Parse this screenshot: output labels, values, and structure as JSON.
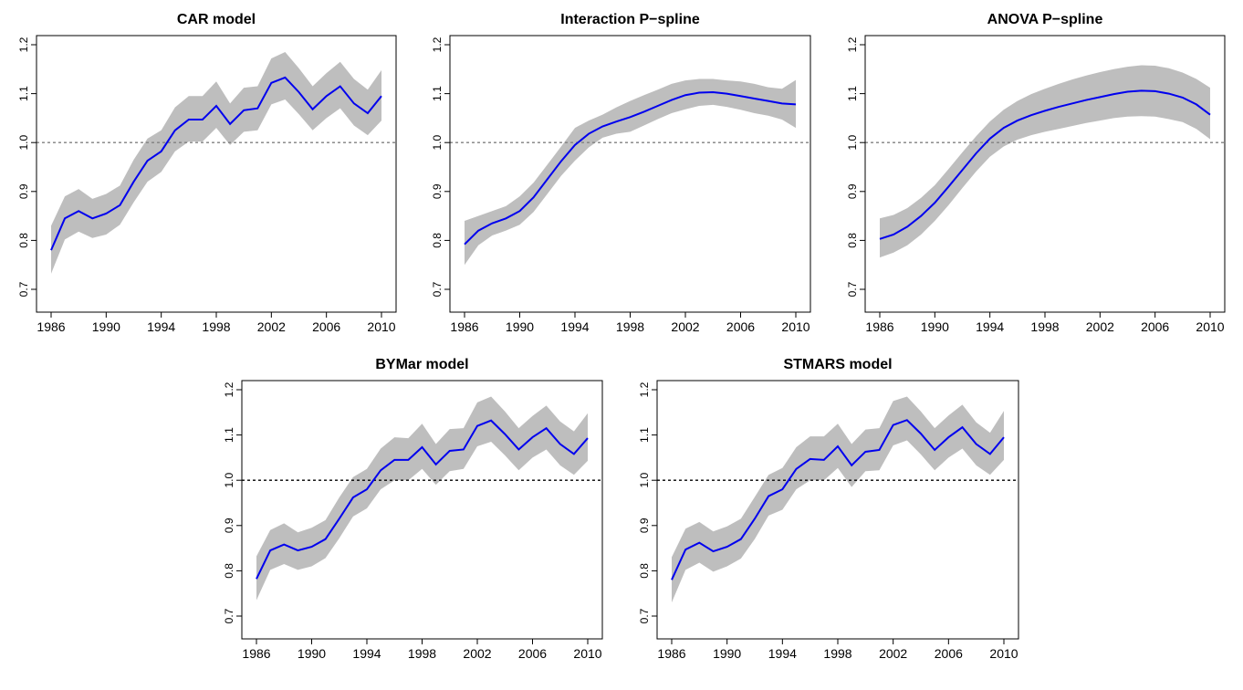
{
  "chart_data": [
    {
      "type": "line",
      "title": "CAR model",
      "xlabel": "",
      "ylabel": "",
      "xlim": [
        1986,
        2010
      ],
      "ylim": [
        0.7,
        1.2
      ],
      "xticks": [
        "1986",
        "1990",
        "1994",
        "1998",
        "2002",
        "2006",
        "2010"
      ],
      "yticks": [
        "0.7",
        "0.8",
        "0.9",
        "1.0",
        "1.1",
        "1.2"
      ],
      "reference_line": 1.0,
      "reference_line_style": "dotted-gray",
      "band_color": "#bebebe",
      "line_color": "#0000ee",
      "x": [
        1986,
        1987,
        1988,
        1989,
        1990,
        1991,
        1992,
        1993,
        1994,
        1995,
        1996,
        1997,
        1998,
        1999,
        2000,
        2001,
        2002,
        2003,
        2004,
        2005,
        2006,
        2007,
        2008,
        2009,
        2010
      ],
      "mean": [
        0.78,
        0.845,
        0.86,
        0.845,
        0.855,
        0.872,
        0.92,
        0.963,
        0.982,
        1.025,
        1.047,
        1.047,
        1.075,
        1.038,
        1.066,
        1.07,
        1.122,
        1.133,
        1.103,
        1.068,
        1.095,
        1.115,
        1.08,
        1.06,
        1.095
      ],
      "upper": [
        0.83,
        0.89,
        0.905,
        0.885,
        0.895,
        0.912,
        0.965,
        1.008,
        1.025,
        1.072,
        1.095,
        1.095,
        1.125,
        1.08,
        1.112,
        1.115,
        1.172,
        1.185,
        1.152,
        1.115,
        1.142,
        1.165,
        1.13,
        1.108,
        1.148
      ],
      "lower": [
        0.732,
        0.802,
        0.818,
        0.805,
        0.812,
        0.832,
        0.878,
        0.92,
        0.94,
        0.982,
        1.002,
        1.002,
        1.03,
        0.995,
        1.022,
        1.025,
        1.078,
        1.088,
        1.058,
        1.025,
        1.05,
        1.07,
        1.035,
        1.015,
        1.045
      ]
    },
    {
      "type": "line",
      "title": "Interaction P−spline",
      "xlabel": "",
      "ylabel": "",
      "xlim": [
        1986,
        2010
      ],
      "ylim": [
        0.7,
        1.2
      ],
      "xticks": [
        "1986",
        "1990",
        "1994",
        "1998",
        "2002",
        "2006",
        "2010"
      ],
      "yticks": [
        "0.7",
        "0.8",
        "0.9",
        "1.0",
        "1.1",
        "1.2"
      ],
      "reference_line": 1.0,
      "reference_line_style": "dotted-gray",
      "band_color": "#bebebe",
      "line_color": "#0000ee",
      "x": [
        1986,
        1987,
        1988,
        1989,
        1990,
        1991,
        1992,
        1993,
        1994,
        1995,
        1996,
        1997,
        1998,
        1999,
        2000,
        2001,
        2002,
        2003,
        2004,
        2005,
        2006,
        2007,
        2008,
        2009,
        2010
      ],
      "mean": [
        0.792,
        0.82,
        0.835,
        0.845,
        0.86,
        0.888,
        0.925,
        0.962,
        0.995,
        1.018,
        1.033,
        1.043,
        1.052,
        1.063,
        1.075,
        1.087,
        1.097,
        1.102,
        1.103,
        1.1,
        1.095,
        1.09,
        1.085,
        1.08,
        1.078
      ],
      "upper": [
        0.84,
        0.85,
        0.86,
        0.87,
        0.89,
        0.918,
        0.955,
        0.992,
        1.03,
        1.045,
        1.057,
        1.072,
        1.085,
        1.097,
        1.108,
        1.12,
        1.127,
        1.13,
        1.13,
        1.127,
        1.125,
        1.12,
        1.113,
        1.11,
        1.128
      ],
      "lower": [
        0.75,
        0.79,
        0.81,
        0.82,
        0.832,
        0.858,
        0.895,
        0.932,
        0.963,
        0.99,
        1.01,
        1.018,
        1.022,
        1.035,
        1.048,
        1.06,
        1.068,
        1.075,
        1.077,
        1.073,
        1.067,
        1.06,
        1.055,
        1.047,
        1.03
      ]
    },
    {
      "type": "line",
      "title": "ANOVA P−spline",
      "xlabel": "",
      "ylabel": "",
      "xlim": [
        1986,
        2010
      ],
      "ylim": [
        0.7,
        1.2
      ],
      "xticks": [
        "1986",
        "1990",
        "1994",
        "1998",
        "2002",
        "2006",
        "2010"
      ],
      "yticks": [
        "0.7",
        "0.8",
        "0.9",
        "1.0",
        "1.1",
        "1.2"
      ],
      "reference_line": 1.0,
      "reference_line_style": "dotted-gray",
      "band_color": "#bebebe",
      "line_color": "#0000ee",
      "x": [
        1986,
        1987,
        1988,
        1989,
        1990,
        1991,
        1992,
        1993,
        1994,
        1995,
        1996,
        1997,
        1998,
        1999,
        2000,
        2001,
        2002,
        2003,
        2004,
        2005,
        2006,
        2007,
        2008,
        2009,
        2010
      ],
      "mean": [
        0.803,
        0.812,
        0.828,
        0.85,
        0.877,
        0.91,
        0.944,
        0.978,
        1.008,
        1.03,
        1.045,
        1.056,
        1.065,
        1.073,
        1.08,
        1.087,
        1.093,
        1.099,
        1.104,
        1.106,
        1.105,
        1.1,
        1.092,
        1.078,
        1.057
      ],
      "upper": [
        0.845,
        0.852,
        0.866,
        0.887,
        0.913,
        0.946,
        0.98,
        1.013,
        1.043,
        1.067,
        1.085,
        1.099,
        1.11,
        1.12,
        1.129,
        1.137,
        1.144,
        1.15,
        1.155,
        1.158,
        1.157,
        1.152,
        1.143,
        1.13,
        1.112
      ],
      "lower": [
        0.765,
        0.775,
        0.79,
        0.812,
        0.84,
        0.872,
        0.907,
        0.941,
        0.971,
        0.992,
        1.006,
        1.015,
        1.022,
        1.028,
        1.034,
        1.04,
        1.045,
        1.05,
        1.053,
        1.054,
        1.053,
        1.048,
        1.042,
        1.028,
        1.007
      ]
    },
    {
      "type": "line",
      "title": "BYMar model",
      "xlabel": "",
      "ylabel": "",
      "xlim": [
        1986,
        2010
      ],
      "ylim": [
        0.7,
        1.2
      ],
      "xticks": [
        "1986",
        "1990",
        "1994",
        "1998",
        "2002",
        "2006",
        "2010"
      ],
      "yticks": [
        "0.7",
        "0.8",
        "0.9",
        "1.0",
        "1.1",
        "1.2"
      ],
      "reference_line": 1.0,
      "reference_line_style": "dotted-black",
      "band_color": "#bebebe",
      "line_color": "#0000ee",
      "x": [
        1986,
        1987,
        1988,
        1989,
        1990,
        1991,
        1992,
        1993,
        1994,
        1995,
        1996,
        1997,
        1998,
        1999,
        2000,
        2001,
        2002,
        2003,
        2004,
        2005,
        2006,
        2007,
        2008,
        2009,
        2010
      ],
      "mean": [
        0.782,
        0.845,
        0.858,
        0.845,
        0.853,
        0.87,
        0.915,
        0.962,
        0.98,
        1.022,
        1.045,
        1.045,
        1.073,
        1.035,
        1.065,
        1.068,
        1.12,
        1.132,
        1.102,
        1.068,
        1.095,
        1.115,
        1.08,
        1.058,
        1.093
      ],
      "upper": [
        0.832,
        0.89,
        0.905,
        0.885,
        0.895,
        0.912,
        0.962,
        1.007,
        1.025,
        1.07,
        1.095,
        1.093,
        1.125,
        1.08,
        1.113,
        1.115,
        1.172,
        1.185,
        1.152,
        1.115,
        1.142,
        1.165,
        1.13,
        1.108,
        1.148
      ],
      "lower": [
        0.735,
        0.802,
        0.815,
        0.802,
        0.81,
        0.828,
        0.872,
        0.92,
        0.938,
        0.98,
        1.0,
        1.0,
        1.025,
        0.99,
        1.02,
        1.025,
        1.075,
        1.085,
        1.055,
        1.022,
        1.05,
        1.068,
        1.033,
        1.012,
        1.043
      ]
    },
    {
      "type": "line",
      "title": "STMARS model",
      "xlabel": "",
      "ylabel": "",
      "xlim": [
        1986,
        2010
      ],
      "ylim": [
        0.7,
        1.2
      ],
      "xticks": [
        "1986",
        "1990",
        "1994",
        "1998",
        "2002",
        "2006",
        "2010"
      ],
      "yticks": [
        "0.7",
        "0.8",
        "0.9",
        "1.0",
        "1.1",
        "1.2"
      ],
      "reference_line": 1.0,
      "reference_line_style": "dotted-black",
      "band_color": "#bebebe",
      "line_color": "#0000ee",
      "x": [
        1986,
        1987,
        1988,
        1989,
        1990,
        1991,
        1992,
        1993,
        1994,
        1995,
        1996,
        1997,
        1998,
        1999,
        2000,
        2001,
        2002,
        2003,
        2004,
        2005,
        2006,
        2007,
        2008,
        2009,
        2010
      ],
      "mean": [
        0.78,
        0.847,
        0.862,
        0.843,
        0.853,
        0.87,
        0.915,
        0.965,
        0.98,
        1.025,
        1.047,
        1.045,
        1.075,
        1.033,
        1.063,
        1.067,
        1.122,
        1.133,
        1.103,
        1.067,
        1.095,
        1.117,
        1.08,
        1.058,
        1.095
      ],
      "upper": [
        0.83,
        0.893,
        0.908,
        0.887,
        0.898,
        0.915,
        0.963,
        1.012,
        1.027,
        1.073,
        1.097,
        1.097,
        1.125,
        1.08,
        1.112,
        1.115,
        1.175,
        1.185,
        1.152,
        1.115,
        1.143,
        1.167,
        1.128,
        1.105,
        1.153
      ],
      "lower": [
        0.73,
        0.802,
        0.818,
        0.798,
        0.81,
        0.827,
        0.87,
        0.922,
        0.935,
        0.98,
        1.0,
        1.0,
        1.027,
        0.985,
        1.02,
        1.022,
        1.077,
        1.088,
        1.057,
        1.022,
        1.05,
        1.07,
        1.033,
        1.012,
        1.045
      ]
    }
  ]
}
